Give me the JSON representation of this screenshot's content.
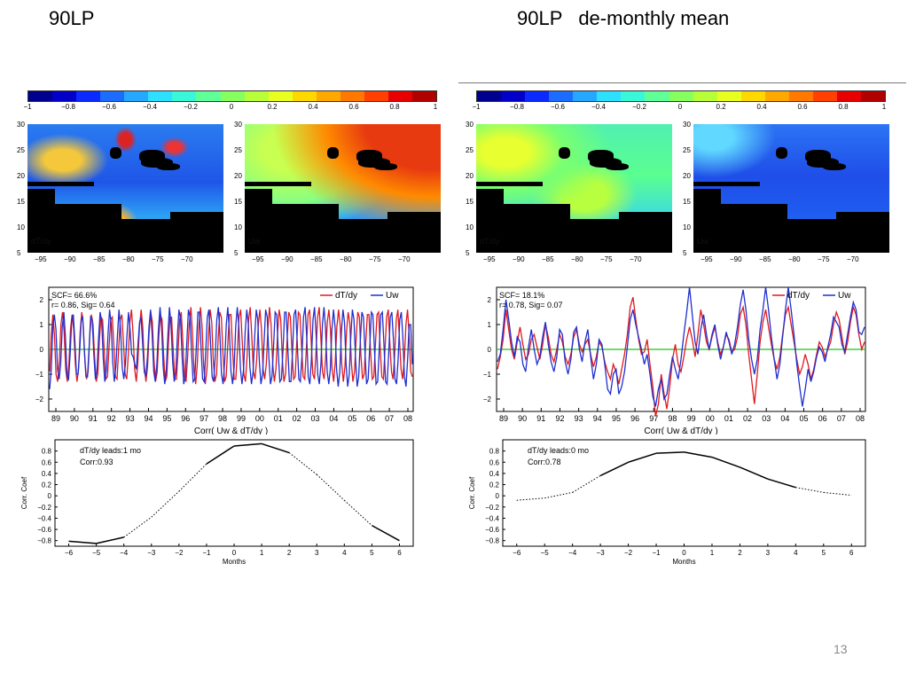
{
  "slide": {
    "title_left": "90LP",
    "title_right": "90LP   de-monthly mean",
    "page_number": "13"
  },
  "colorbar": {
    "ticks": [
      "−1",
      "−0.8",
      "−0.6",
      "−0.4",
      "−0.2",
      "0",
      "0.2",
      "0.4",
      "0.6",
      "0.8",
      "1"
    ],
    "colors_left": [
      "#00008f",
      "#0000c8",
      "#0a2aff",
      "#1c6cff",
      "#27a8ff",
      "#2ee0ff",
      "#38f8d8",
      "#60ff98",
      "#88ff60",
      "#b8ff3a",
      "#e8ff20",
      "#ffd800",
      "#ffa800",
      "#ff7800",
      "#ff4000",
      "#e80000",
      "#b00000"
    ],
    "colors_right": [
      "#00008f",
      "#0000c8",
      "#0a2aff",
      "#1c6cff",
      "#27a8ff",
      "#2ee0ff",
      "#38f8d8",
      "#60ff98",
      "#88ff60",
      "#b8ff3a",
      "#e8ff20",
      "#ffd800",
      "#ffa800",
      "#ff7800",
      "#ff4000",
      "#e80000",
      "#b00000"
    ]
  },
  "maps": {
    "lat_ticks": [
      "30",
      "25",
      "20",
      "15",
      "10",
      "5"
    ],
    "lon_ticks": [
      "−95",
      "−90",
      "−85",
      "−80",
      "−75",
      "−70"
    ],
    "panels": [
      {
        "label": "dT/dy"
      },
      {
        "label": "Uw"
      },
      {
        "label": "dT/dy"
      },
      {
        "label": "Uw"
      }
    ]
  },
  "chart_data": [
    {
      "type": "line",
      "title": "",
      "xlabel": "Corr( Uw & dT/dy )",
      "x_tick_labels": [
        "89",
        "90",
        "91",
        "92",
        "93",
        "94",
        "95",
        "96",
        "97",
        "98",
        "99",
        "00",
        "01",
        "02",
        "03",
        "04",
        "05",
        "06",
        "07",
        "08"
      ],
      "ylim": [
        -2.5,
        2.5
      ],
      "y_ticks": [
        "2",
        "1",
        "0",
        "−1",
        "−2"
      ],
      "annotation": [
        "SCF= 66.6%",
        "r= 0.86, Sig= 0.64"
      ],
      "legend": {
        "placement": "top-right",
        "entries": [
          "dT/dy",
          "Uw"
        ]
      },
      "series": [
        {
          "name": "dT/dy",
          "color": "#e0191e",
          "values": [
            -0.9,
            0.6,
            1.4,
            0.6,
            -1.0,
            -1.3,
            -0.5,
            1.0,
            1.5,
            0.7,
            -0.8,
            -1.3,
            -0.6,
            0.8,
            1.4,
            0.8,
            -0.6,
            -1.3,
            -0.8,
            0.7,
            1.5,
            0.9,
            -0.5,
            -1.2,
            -0.9,
            0.5,
            1.4,
            1.0,
            -0.3,
            -1.3,
            -1.0,
            0.4,
            1.3,
            1.2,
            0.0,
            -1.2,
            -1.1,
            0.1,
            1.2,
            1.3,
            0.2,
            -1.1,
            -1.2,
            0.0,
            1.2,
            1.4,
            0.3,
            -1.0,
            -1.2,
            -0.2,
            1.1,
            1.6,
            0.6,
            -0.8,
            -1.3,
            -0.5,
            0.9,
            1.6,
            0.9,
            -0.7,
            -1.3,
            -0.7,
            0.7,
            1.5,
            1.1,
            -0.4,
            -1.3,
            -0.9,
            0.5,
            1.4,
            1.2,
            -0.2,
            -1.3,
            -1.1,
            0.2,
            1.3,
            1.3,
            0.0,
            -1.2,
            -1.2,
            -0.1,
            1.2,
            1.5,
            0.3,
            -1.1,
            -1.3,
            -0.3,
            1.0,
            1.7,
            0.6,
            -0.9,
            -1.4,
            -0.6,
            0.9,
            1.7,
            0.9,
            -0.7,
            -1.4,
            -0.8,
            0.6,
            1.6,
            1.1,
            -0.5,
            -1.3,
            -1.0,
            0.4,
            1.5,
            1.3,
            -0.2,
            -1.3,
            -1.1,
            0.2,
            1.4,
            1.4,
            0.0,
            -1.2,
            -1.2,
            -0.1,
            1.3,
            1.6,
            0.3,
            -1.0,
            -1.3,
            -0.3,
            1.2,
            1.7,
            0.5,
            -0.9,
            -1.2,
            -0.4,
            1.0,
            1.6,
            0.8,
            -0.8,
            -1.2,
            -0.6,
            0.8,
            1.7,
            1.0,
            -0.6,
            -1.3,
            -0.8,
            0.6,
            1.6,
            1.2,
            -0.4,
            -1.3,
            -1.0,
            0.4,
            1.5,
            1.3,
            -0.1,
            -1.2,
            -1.1,
            0.3,
            1.5,
            1.4,
            0.1,
            -1.1,
            -1.2,
            0.1,
            1.4,
            1.6,
            0.3,
            -1.0,
            -1.2,
            -0.1,
            1.3,
            1.7,
            0.5,
            -0.9,
            -1.2,
            -0.3,
            1.1,
            1.6,
            0.8,
            -0.8,
            -1.3,
            -0.5,
            0.9,
            1.6,
            1.0,
            -0.6,
            -1.3,
            -0.7,
            0.7,
            1.5,
            1.1,
            -0.5,
            -1.3,
            -0.9,
            0.5,
            1.5,
            1.3,
            -0.3,
            -1.2,
            -1.0,
            0.3,
            1.4,
            1.4,
            -0.1,
            -1.2,
            -1.1,
            0.2,
            1.4,
            1.5,
            0.0,
            -1.1,
            -1.2,
            0.0,
            1.3,
            1.6,
            0.2,
            -0.9,
            -1.2,
            -0.2,
            1.2,
            1.6,
            0.4,
            -0.8,
            -1.2,
            -0.4,
            1.0,
            1.6,
            0.6,
            -0.9,
            -1.1
          ]
        },
        {
          "name": "Uw",
          "color": "#1f2fd0",
          "values": [
            -1.6,
            -0.8,
            0.9,
            1.4,
            0.8,
            -0.8,
            -1.2,
            -0.6,
            0.9,
            1.5,
            0.5,
            -1.1,
            -1.2,
            -0.2,
            1.2,
            1.4,
            0.3,
            -1.0,
            -1.0,
            -0.1,
            1.2,
            1.3,
            0.0,
            -1.1,
            -1.1,
            0.1,
            1.3,
            1.2,
            -0.2,
            -1.2,
            -0.9,
            0.4,
            1.5,
            1.1,
            -0.4,
            -1.3,
            -0.8,
            0.6,
            1.6,
            1.0,
            -0.5,
            -1.3,
            -0.7,
            0.6,
            1.6,
            0.8,
            -0.7,
            -1.2,
            -0.6,
            0.5,
            1.5,
            0.8,
            -0.2,
            -0.3,
            -0.6,
            -0.8,
            0.2,
            1.1,
            1.3,
            0.2,
            -0.9,
            -1.1,
            -0.3,
            0.9,
            1.6,
            0.6,
            -0.9,
            -1.3,
            -0.6,
            0.8,
            1.7,
            0.9,
            -0.7,
            -1.4,
            -0.8,
            0.6,
            1.7,
            1.0,
            -0.5,
            -1.3,
            -0.9,
            0.5,
            1.6,
            1.2,
            -0.3,
            -1.4,
            -1.1,
            0.3,
            1.6,
            1.3,
            -0.1,
            -1.3,
            -1.2,
            0.1,
            1.5,
            1.5,
            0.1,
            -1.2,
            -1.3,
            -0.1,
            1.3,
            1.6,
            0.3,
            -1.1,
            -1.3,
            -0.3,
            1.2,
            1.7,
            0.5,
            -1.0,
            -1.4,
            -0.5,
            1.0,
            1.7,
            0.7,
            -0.9,
            -1.4,
            -0.7,
            0.9,
            1.7,
            0.9,
            -0.8,
            -1.4,
            -0.8,
            0.7,
            1.6,
            1.0,
            -0.7,
            -1.4,
            -0.9,
            0.5,
            1.6,
            1.2,
            -0.5,
            -1.4,
            -1.0,
            0.3,
            1.6,
            1.3,
            -0.3,
            -1.4,
            -1.1,
            0.1,
            1.5,
            1.4,
            -0.1,
            -1.3,
            -1.2,
            0.0,
            1.5,
            1.5,
            0.1,
            -1.3,
            -1.3,
            -0.1,
            1.4,
            1.6,
            0.3,
            -1.2,
            -1.3,
            -0.3,
            1.3,
            1.7,
            0.5,
            -1.1,
            -1.4,
            -0.4,
            1.2,
            1.7,
            0.6,
            -1.0,
            -1.4,
            -0.6,
            1.0,
            1.7,
            0.8,
            -0.9,
            -1.4,
            -0.8,
            0.8,
            1.6,
            0.9,
            -0.8,
            -1.5,
            -0.9,
            0.7,
            1.6,
            1.1,
            -0.6,
            -1.5,
            -1.0,
            0.5,
            1.6,
            1.2,
            -0.4,
            -1.5,
            -1.1,
            0.3,
            1.5,
            1.3,
            -0.2,
            -1.4,
            -1.2,
            0.1,
            1.5,
            1.4,
            0.0,
            -1.4,
            -1.3,
            0.0,
            1.4,
            1.5,
            0.2,
            -1.3,
            -1.4,
            -0.2,
            1.3,
            1.5,
            0.4,
            -1.2,
            -1.4,
            -0.4,
            1.2,
            1.5,
            0.5,
            -1.1,
            -1.5,
            -0.4,
            1.0,
            1.0,
            -0.6
          ]
        }
      ]
    },
    {
      "type": "line",
      "title": "",
      "xlabel": "Corr( Uw & dT/dy )",
      "x_tick_labels": [
        "89",
        "90",
        "91",
        "92",
        "93",
        "94",
        "95",
        "96",
        "97",
        "98",
        "99",
        "00",
        "01",
        "02",
        "03",
        "04",
        "05",
        "06",
        "07",
        "08"
      ],
      "ylim": [
        -2.5,
        2.5
      ],
      "y_ticks": [
        "2",
        "1",
        "0",
        "−1",
        "−2"
      ],
      "annotation": [
        "SCF= 18.1%",
        "r= 0.78, Sig= 0.07"
      ],
      "legend": {
        "placement": "top-right",
        "entries": [
          "dT/dy",
          "Uw"
        ]
      },
      "series": [
        {
          "name": "dT/dy",
          "color": "#e0191e",
          "values": [
            -0.8,
            -0.3,
            0.4,
            1.6,
            0.8,
            0.0,
            -0.4,
            0.3,
            0.9,
            0.2,
            -0.4,
            -0.2,
            0.4,
            0.6,
            0.1,
            -0.4,
            0.2,
            1.0,
            0.5,
            -0.2,
            -0.5,
            0.0,
            0.6,
            0.3,
            -0.3,
            -0.6,
            -0.2,
            0.5,
            0.8,
            0.2,
            -0.1,
            0.2,
            0.4,
            -0.2,
            -0.7,
            -0.3,
            0.3,
            0.1,
            -0.5,
            -0.9,
            -1.2,
            -0.6,
            -0.9,
            -1.4,
            -0.8,
            -0.2,
            0.6,
            1.7,
            2.1,
            1.2,
            0.4,
            -0.2,
            -0.1,
            0.4,
            -0.6,
            -1.5,
            -2.7,
            -2.2,
            -1.0,
            -1.8,
            -2.4,
            -1.5,
            -0.4,
            0.2,
            -0.6,
            -0.9,
            -0.3,
            0.4,
            0.9,
            0.4,
            -0.3,
            0.6,
            1.6,
            1.0,
            0.3,
            0.0,
            0.5,
            0.9,
            0.3,
            -0.2,
            0.1,
            0.6,
            0.4,
            -0.1,
            0.0,
            0.5,
            1.4,
            1.7,
            1.0,
            -0.2,
            -1.2,
            -2.2,
            -1.0,
            0.3,
            1.1,
            1.6,
            0.9,
            0.2,
            -0.4,
            -0.8,
            -0.3,
            0.6,
            1.4,
            1.7,
            1.0,
            0.3,
            -0.4,
            -1.0,
            -0.7,
            -0.2,
            -0.6,
            -1.2,
            -0.8,
            -0.2,
            0.3,
            0.1,
            -0.3,
            0.0,
            0.3,
            1.0,
            1.5,
            1.2,
            0.5,
            -0.2,
            0.3,
            1.1,
            1.7,
            1.4,
            0.6,
            0.0,
            0.3
          ]
        },
        {
          "name": "Uw",
          "color": "#1f2fd0",
          "values": [
            -0.5,
            -0.2,
            0.8,
            2.0,
            1.2,
            0.3,
            -0.3,
            0.5,
            0.3,
            -0.6,
            -0.9,
            0.1,
            0.8,
            0.0,
            -0.6,
            -0.3,
            0.5,
            1.1,
            0.2,
            -0.5,
            -0.9,
            -0.3,
            0.8,
            0.6,
            -0.5,
            -1.0,
            -0.4,
            0.7,
            0.9,
            0.0,
            -0.5,
            0.3,
            0.8,
            -0.3,
            -1.2,
            -0.6,
            0.4,
            0.2,
            -0.6,
            -1.6,
            -1.8,
            -1.0,
            -0.8,
            -1.8,
            -1.5,
            -0.9,
            0.1,
            1.2,
            1.6,
            1.0,
            0.5,
            0.0,
            -0.6,
            -0.2,
            -1.0,
            -1.9,
            -2.3,
            -1.6,
            -1.2,
            -2.0,
            -1.8,
            -1.0,
            -0.3,
            -0.8,
            -1.2,
            -0.4,
            0.6,
            1.5,
            2.5,
            1.4,
            0.3,
            -0.2,
            0.8,
            1.4,
            0.6,
            0.0,
            0.6,
            1.0,
            0.2,
            -0.4,
            0.1,
            0.7,
            0.3,
            -0.2,
            0.2,
            0.9,
            1.8,
            2.4,
            1.6,
            0.4,
            -0.4,
            -1.0,
            -0.4,
            0.8,
            1.6,
            2.5,
            1.6,
            0.5,
            -0.4,
            -1.2,
            -0.6,
            0.5,
            1.6,
            2.5,
            1.6,
            0.6,
            -0.6,
            -1.5,
            -2.3,
            -1.6,
            -0.8,
            -1.3,
            -0.9,
            -0.3,
            0.1,
            -0.1,
            -0.5,
            0.1,
            0.6,
            1.3,
            1.1,
            0.9,
            0.2,
            -0.1,
            0.6,
            1.3,
            1.9,
            1.6,
            0.7,
            0.6,
            0.9
          ]
        }
      ]
    },
    {
      "type": "line",
      "title": "",
      "xlabel": "Months",
      "ylabel": "Corr. Coef",
      "x": [
        -6,
        -5,
        -4,
        -3,
        -2,
        -1,
        0,
        1,
        2,
        3,
        4,
        5,
        6
      ],
      "xlim": [
        -6.5,
        6.5
      ],
      "ylim": [
        -0.9,
        1.0
      ],
      "y_ticks": [
        "0.8",
        "0.6",
        "0.4",
        "0.2",
        "0",
        "−0.2",
        "−0.4",
        "−0.6",
        "−0.8"
      ],
      "annotation": [
        "dT/dy leads:1 mo",
        "Corr:0.93"
      ],
      "series": [
        {
          "name": "",
          "values": [
            -0.81,
            -0.85,
            -0.74,
            -0.38,
            0.08,
            0.57,
            0.89,
            0.93,
            0.77,
            0.38,
            -0.08,
            -0.53,
            -0.8
          ],
          "significant": [
            true,
            true,
            true,
            false,
            false,
            true,
            true,
            true,
            true,
            false,
            false,
            true,
            true
          ]
        }
      ]
    },
    {
      "type": "line",
      "title": "",
      "xlabel": "Months",
      "ylabel": "Corr. Coef",
      "x": [
        -6,
        -5,
        -4,
        -3,
        -2,
        -1,
        0,
        1,
        2,
        3,
        4,
        5,
        6
      ],
      "xlim": [
        -6.5,
        6.5
      ],
      "ylim": [
        -0.9,
        1.0
      ],
      "y_ticks": [
        "0.8",
        "0.6",
        "0.4",
        "0.2",
        "0",
        "−0.2",
        "−0.4",
        "−0.6",
        "−0.8"
      ],
      "annotation": [
        "dT/dy leads:0 mo",
        "Corr:0.78"
      ],
      "series": [
        {
          "name": "",
          "values": [
            -0.08,
            -0.04,
            0.06,
            0.36,
            0.6,
            0.76,
            0.78,
            0.69,
            0.51,
            0.3,
            0.15,
            0.06,
            0.01
          ],
          "significant": [
            false,
            false,
            false,
            true,
            true,
            true,
            true,
            true,
            true,
            true,
            true,
            false,
            false
          ]
        }
      ]
    }
  ]
}
